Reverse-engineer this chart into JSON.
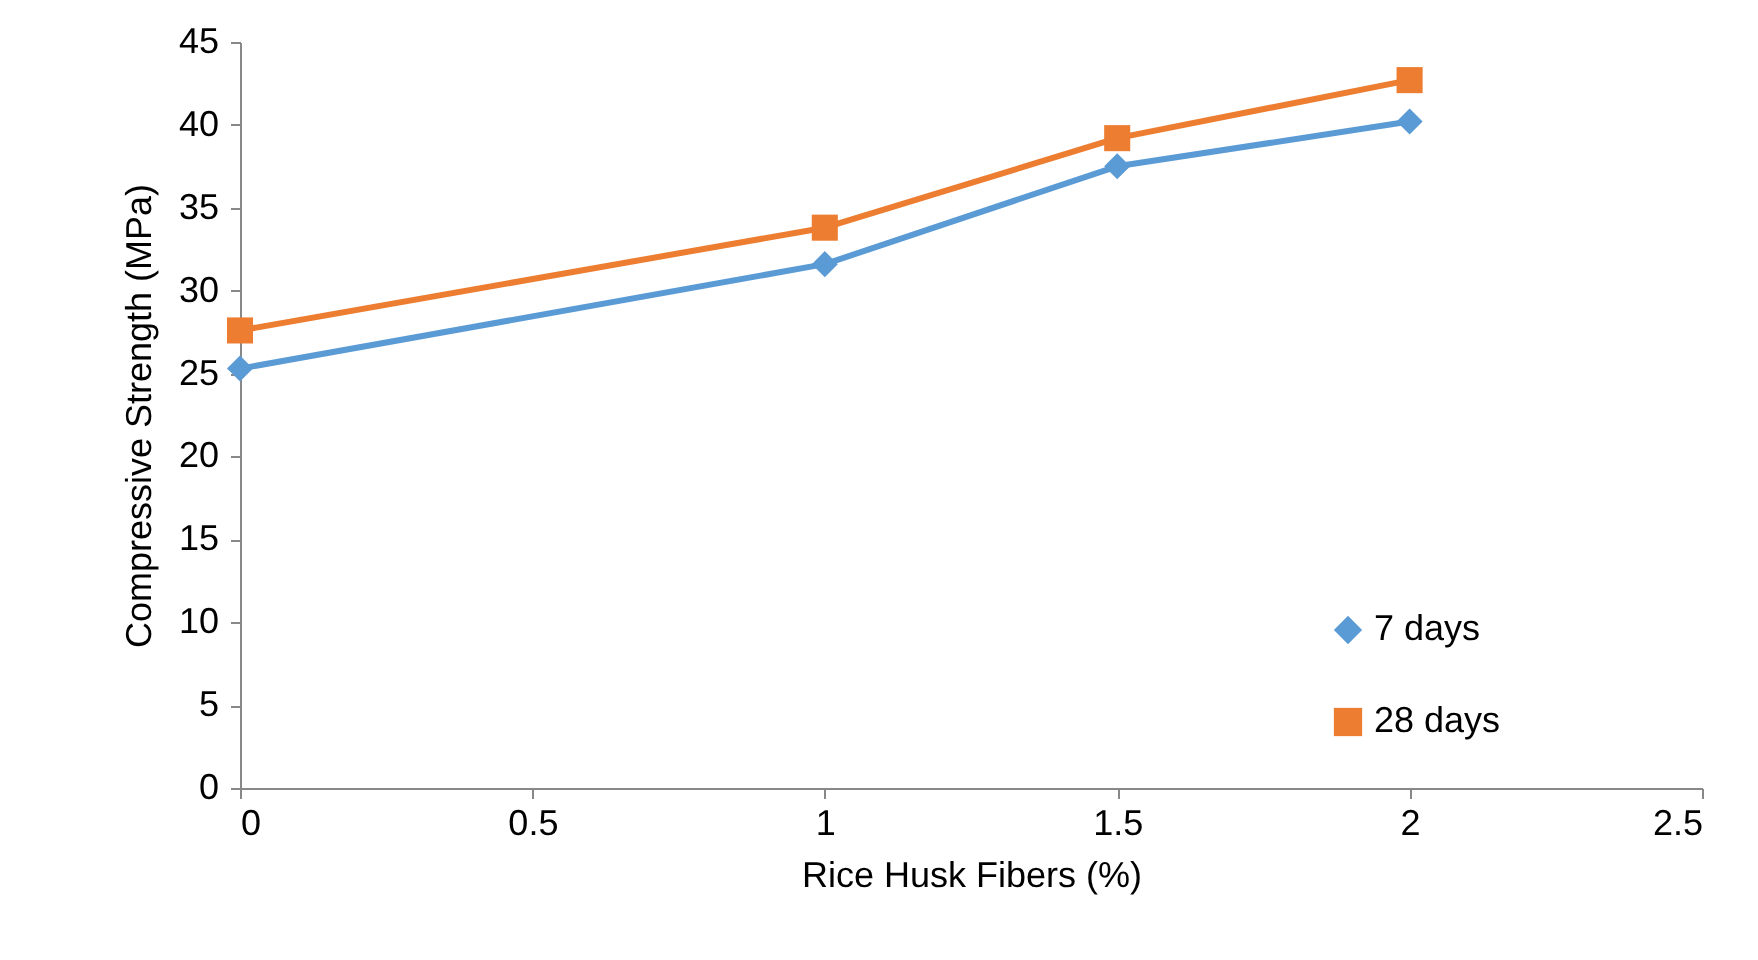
{
  "chart_data": {
    "type": "line",
    "xlabel": "Rice Husk Fibers (%)",
    "ylabel": "Compressive Strength (MPa)",
    "x": [
      0,
      1,
      1.5,
      2
    ],
    "series": [
      {
        "name": "7 days",
        "color": "#5b9bd5",
        "marker": "diamond",
        "values": [
          25.3,
          31.6,
          37.5,
          40.2
        ]
      },
      {
        "name": "28 days",
        "color": "#ed7d31",
        "marker": "square",
        "values": [
          27.6,
          33.8,
          39.2,
          42.7
        ]
      }
    ],
    "xlim": [
      0,
      2.5
    ],
    "xticks": [
      0,
      0.5,
      1,
      1.5,
      2,
      2.5
    ],
    "ylim": [
      0,
      45
    ],
    "yticks": [
      0,
      5,
      10,
      15,
      20,
      25,
      30,
      35,
      40,
      45
    ],
    "grid": false,
    "legend": "bottom right",
    "line_style": "solid"
  }
}
